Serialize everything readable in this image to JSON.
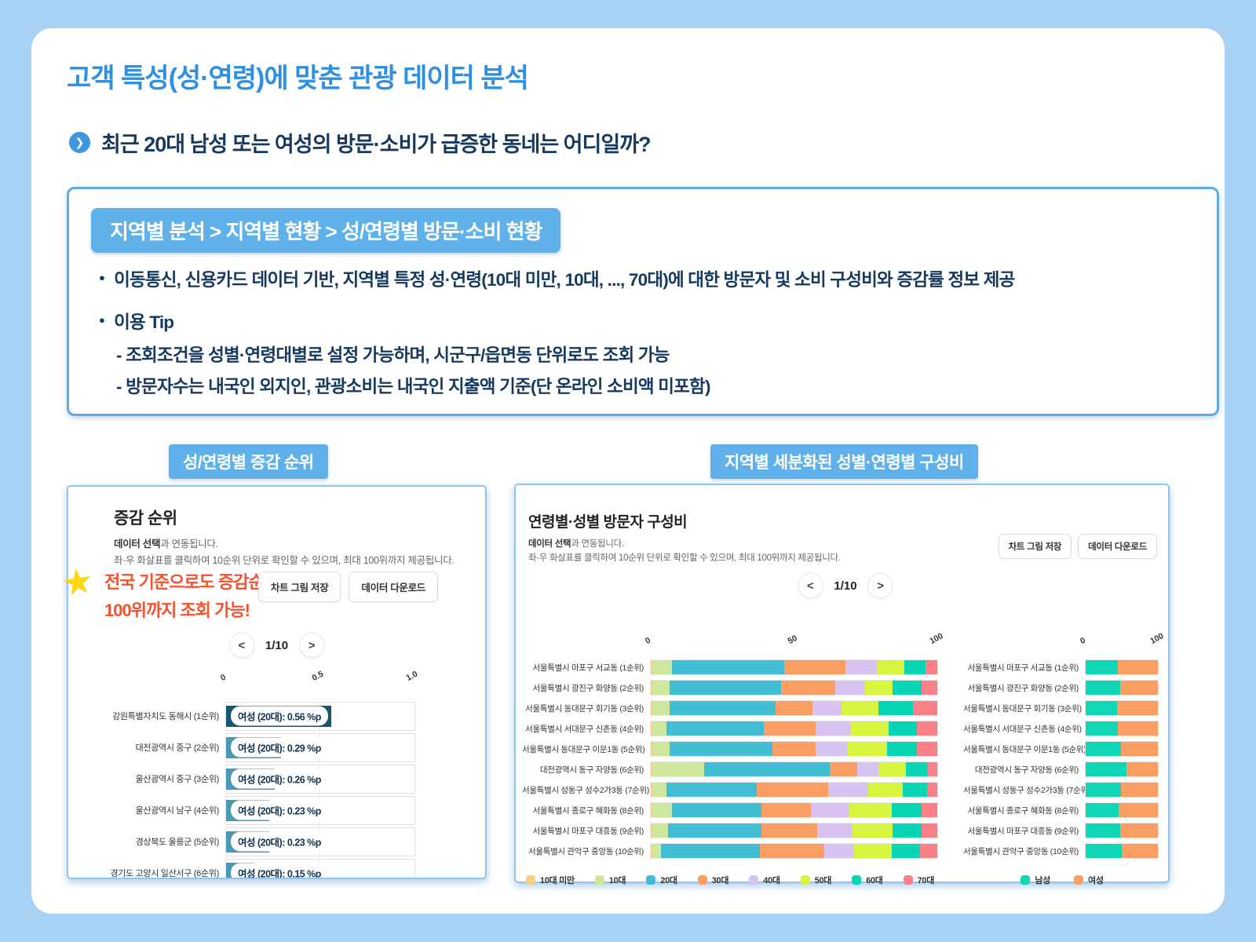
{
  "page": {
    "title": "고객 특성(성·연령)에 맞춘 관광 데이터 분석",
    "question": "최근 20대 남성 또는 여성의 방문·소비가 급증한 동네는 어디일까?"
  },
  "info_box": {
    "breadcrumb": "지역별 분석 > 지역별 현황 > 성/연령별 방문·소비 현황",
    "bullet1": "이동통신, 신용카드 데이터 기반, 지역별 특정 성·연령(10대 미만, 10대, ..., 70대)에 대한 방문자 및 소비 구성비와 증감률 정보 제공",
    "bullet2": "이용 Tip",
    "tip1": "- 조회조건을 성별·연령대별로 설정 가능하며, 시군구/읍면동 단위로도 조회 가능",
    "tip2": "- 방문자수는 내국인 외지인, 관광소비는 내국인 지출액 기준(단 온라인 소비액 미포함)"
  },
  "section_labels": {
    "left": "성/연령별 증감 순위",
    "right": "지역별 세분화된 성별·연령별 구성비"
  },
  "left_panel": {
    "title": "증감 순위",
    "desc_bold": "데이터 선택",
    "desc_rest": "과 연동됩니다.",
    "desc2": "좌·우 화살표를 클릭하여 10순위 단위로 확인할 수 있으며, 최대 100위까지 제공됩니다.",
    "callout_line1": "전국 기준으로도 증감순위",
    "callout_line2": "100위까지 조회 가능!",
    "save_button": "차트 그림 저장",
    "download_button": "데이터 다운로드",
    "pagination": "1/10",
    "prev": "<",
    "next": ">"
  },
  "right_panel": {
    "title": "연령별·성별 방문자 구성비",
    "desc_bold": "데이터 선택",
    "desc_rest": "과 연동됩니다.",
    "desc2": "좌·우 화살표를 클릭하여 10순위 단위로 확인할 수 있으며, 최대 100위까지 제공됩니다.",
    "save_button": "차트 그림 저장",
    "download_button": "데이터 다운로드",
    "pagination": "1/10",
    "prev": "<",
    "next": ">"
  },
  "colors": {
    "background": "#a7d2f4",
    "title_blue": "#2f8fe1",
    "badge_blue": "#60b1e9",
    "text_navy": "#16395f",
    "callout_red": "#f6512f",
    "star_yellow": "#ffd60a"
  },
  "chart_data": [
    {
      "type": "bar",
      "title": "증감 순위",
      "categories": [
        "강원특별자치도 동해시 (1순위)",
        "대전광역시 중구 (2순위)",
        "울산광역시 중구 (3순위)",
        "울산광역시 남구 (4순위)",
        "경상북도 울릉군 (5순위)",
        "경기도 고양시 일산서구 (6순위)"
      ],
      "values": [
        0.56,
        0.29,
        0.26,
        0.23,
        0.23,
        0.15
      ],
      "bar_labels": [
        "여성 (20대): 0.56 %p",
        "여성 (20대): 0.29 %p",
        "여성 (20대): 0.26 %p",
        "여성 (20대): 0.23 %p",
        "여성 (20대): 0.23 %p",
        "여성 (20대): 0.15 %p"
      ],
      "xlim": [
        0,
        1.0
      ],
      "xticks": [
        "0",
        "0.5",
        "1.0"
      ],
      "bar_color_first": "#15586e",
      "bar_color": "#4a9ab5",
      "grid": true,
      "legend_position": "none"
    },
    {
      "type": "stacked-bar",
      "title": "연령별·성별 방문자 구성비 (연령별)",
      "categories": [
        "서울특별시 마포구 서교동 (1순위)",
        "서울특별시 광진구 화양동 (2순위)",
        "서울특별시 동대문구 회기동 (3순위)",
        "서울특별시 서대문구 신촌동 (4순위)",
        "서울특별시 동대문구 이문1동 (5순위)",
        "대전광역시 동구 자양동 (6순위)",
        "서울특별시 성동구 성수2가3동 (7순위)",
        "서울특별시 종로구 혜화동 (8순위)",
        "서울특별시 마포구 대흥동 (9순위)",
        "서울특별시 관악구 중앙동 (10순위)"
      ],
      "series": [
        {
          "name": "10대 미만",
          "color": "#fbce84",
          "values": [
            0.5,
            0.5,
            0.5,
            0.5,
            0.5,
            0.5,
            0.5,
            0.5,
            0.5,
            0.5
          ]
        },
        {
          "name": "10대",
          "color": "#cde79c",
          "values": [
            7,
            6,
            6,
            5,
            6,
            18,
            5,
            7,
            5.5,
            3
          ]
        },
        {
          "name": "20대",
          "color": "#41bed4",
          "values": [
            39,
            39,
            37,
            34,
            36,
            44,
            31.5,
            31,
            32.5,
            34.5
          ]
        },
        {
          "name": "30대",
          "color": "#fa9e64",
          "values": [
            21.5,
            19,
            13,
            18,
            15,
            9.5,
            25,
            17.5,
            19.5,
            22.5
          ]
        },
        {
          "name": "40대",
          "color": "#d7c2f0",
          "values": [
            11,
            10,
            10,
            12.5,
            11,
            7.5,
            14,
            13,
            12.5,
            10.5
          ]
        },
        {
          "name": "50대",
          "color": "#d9f43f",
          "values": [
            9.5,
            10,
            13,
            13,
            14,
            9.5,
            12,
            15,
            14,
            13
          ]
        },
        {
          "name": "60대",
          "color": "#06d6b3",
          "values": [
            7.5,
            10,
            12,
            10,
            10.5,
            7.5,
            8.5,
            10.5,
            10,
            10
          ]
        },
        {
          "name": "70대",
          "color": "#fa8087",
          "values": [
            4,
            5.5,
            8.5,
            7,
            7,
            3.5,
            3.5,
            5.5,
            5.5,
            6
          ]
        }
      ],
      "xlim": [
        0,
        100
      ],
      "xticks": [
        "0",
        "50",
        "100"
      ],
      "grid": true,
      "legend_position": "bottom"
    },
    {
      "type": "stacked-bar",
      "title": "연령별·성별 방문자 구성비 (성별)",
      "categories": [
        "서울특별시 마포구 서교동 (1순위)",
        "서울특별시 광진구 화양동 (2순위)",
        "서울특별시 동대문구 회기동 (3순위)",
        "서울특별시 서대문구 신촌동 (4순위)",
        "서울특별시 동대문구 이문1동 (5순위)",
        "대전광역시 동구 자양동 (6순위)",
        "서울특별시 성동구 성수2가3동 (7순위)",
        "서울특별시 종로구 혜화동 (8순위)",
        "서울특별시 마포구 대흥동 (9순위)",
        "서울특별시 관악구 중앙동 (10순위)"
      ],
      "series": [
        {
          "name": "남성",
          "color": "#0fd6b4",
          "values": [
            45,
            48,
            44,
            45,
            49,
            56,
            49,
            46,
            48,
            50
          ]
        },
        {
          "name": "여성",
          "color": "#fa9e64",
          "values": [
            55,
            52,
            56,
            55,
            51,
            44,
            51,
            54,
            52,
            50
          ]
        }
      ],
      "xlim": [
        0,
        100
      ],
      "xticks": [
        "0",
        "100"
      ],
      "grid": false,
      "legend_position": "bottom"
    }
  ]
}
